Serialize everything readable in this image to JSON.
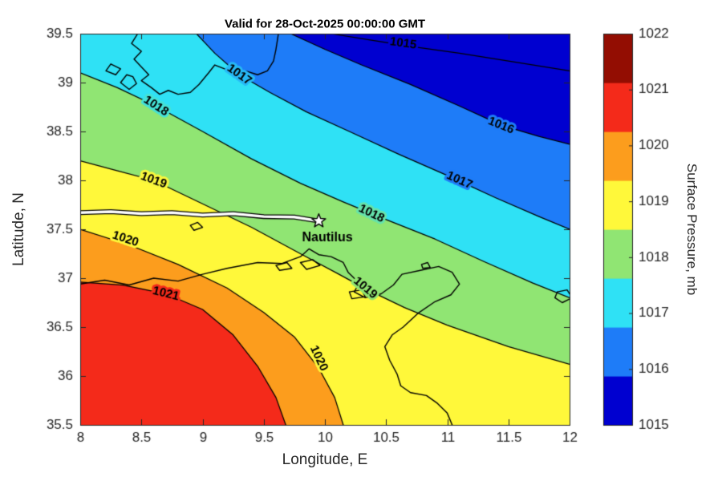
{
  "chart_data": {
    "type": "contour-map",
    "title": "Valid for 28-Oct-2025 00:00:00 GMT",
    "xlabel": "Longitude, E",
    "ylabel": "Latitude, N",
    "xlim": [
      8,
      12
    ],
    "ylim": [
      35.5,
      39.5
    ],
    "xticks": [
      8,
      8.5,
      9,
      9.5,
      10,
      10.5,
      11,
      11.5,
      12
    ],
    "yticks": [
      35.5,
      36,
      36.5,
      37,
      37.5,
      38,
      38.5,
      39,
      39.5
    ],
    "grid": false,
    "colorbar": {
      "label": "Surface Pressure, mb",
      "ticks": [
        1015,
        1016,
        1017,
        1018,
        1019,
        1020,
        1021,
        1022
      ]
    },
    "band_colors": {
      "1015": "#0000D0",
      "1016": "#1E7CF8",
      "1017": "#2FE1F5",
      "1018": "#90E573",
      "1019": "#FFF83A",
      "1020": "#FC9D1D",
      "1021": "#F42A1A",
      "1022": "#930D02"
    },
    "contours": [
      {
        "level": 1015,
        "points": [
          [
            10.05,
            39.5
          ],
          [
            10.35,
            39.44
          ],
          [
            10.7,
            39.37
          ],
          [
            11.1,
            39.3
          ],
          [
            11.5,
            39.22
          ],
          [
            12,
            39.12
          ]
        ]
      },
      {
        "level": 1016,
        "points": [
          [
            9.72,
            39.5
          ],
          [
            10.0,
            39.34
          ],
          [
            10.3,
            39.18
          ],
          [
            10.7,
            38.98
          ],
          [
            11.1,
            38.76
          ],
          [
            11.45,
            38.56
          ],
          [
            11.75,
            38.45
          ],
          [
            12,
            38.37
          ]
        ]
      },
      {
        "level": 1017,
        "points": [
          [
            8.95,
            39.5
          ],
          [
            9.1,
            39.3
          ],
          [
            9.3,
            39.08
          ],
          [
            9.55,
            38.9
          ],
          [
            9.85,
            38.7
          ],
          [
            10.2,
            38.5
          ],
          [
            10.6,
            38.27
          ],
          [
            11.0,
            38.05
          ],
          [
            11.4,
            37.82
          ],
          [
            11.75,
            37.63
          ],
          [
            12,
            37.5
          ]
        ]
      },
      {
        "level": 1018,
        "points": [
          [
            8,
            39.1
          ],
          [
            8.3,
            38.95
          ],
          [
            8.62,
            38.76
          ],
          [
            9.0,
            38.5
          ],
          [
            9.4,
            38.22
          ],
          [
            9.8,
            37.97
          ],
          [
            10.15,
            37.78
          ],
          [
            10.5,
            37.6
          ],
          [
            10.9,
            37.4
          ],
          [
            11.3,
            37.17
          ],
          [
            11.7,
            36.95
          ],
          [
            12,
            36.8
          ]
        ]
      },
      {
        "level": 1019,
        "points": [
          [
            8,
            38.2
          ],
          [
            8.3,
            38.1
          ],
          [
            8.6,
            38.0
          ],
          [
            9.0,
            37.76
          ],
          [
            9.4,
            37.52
          ],
          [
            9.8,
            37.25
          ],
          [
            10.1,
            37.05
          ],
          [
            10.35,
            36.88
          ],
          [
            10.65,
            36.7
          ],
          [
            11.0,
            36.52
          ],
          [
            11.5,
            36.3
          ],
          [
            12,
            36.12
          ]
        ]
      },
      {
        "level": 1020,
        "points": [
          [
            8,
            37.5
          ],
          [
            8.4,
            37.34
          ],
          [
            8.8,
            37.14
          ],
          [
            9.2,
            36.9
          ],
          [
            9.5,
            36.65
          ],
          [
            9.75,
            36.4
          ],
          [
            9.95,
            36.08
          ],
          [
            10.08,
            35.78
          ],
          [
            10.15,
            35.5
          ]
        ]
      },
      {
        "level": 1021,
        "points": [
          [
            8,
            36.96
          ],
          [
            8.35,
            36.93
          ],
          [
            8.7,
            36.84
          ],
          [
            9.0,
            36.68
          ],
          [
            9.25,
            36.42
          ],
          [
            9.45,
            36.1
          ],
          [
            9.6,
            35.78
          ],
          [
            9.68,
            35.5
          ]
        ]
      }
    ],
    "contour_labels": [
      {
        "text": "1018",
        "lon": 8.62,
        "lat": 38.76,
        "rot": 33
      },
      {
        "text": "1017",
        "lon": 9.3,
        "lat": 39.08,
        "rot": 35
      },
      {
        "text": "1015",
        "lon": 10.64,
        "lat": 39.4,
        "rot": 8
      },
      {
        "text": "1016",
        "lon": 11.44,
        "lat": 38.56,
        "rot": 22
      },
      {
        "text": "1017",
        "lon": 11.1,
        "lat": 38.0,
        "rot": 24
      },
      {
        "text": "1018",
        "lon": 10.38,
        "lat": 37.66,
        "rot": 26
      },
      {
        "text": "1019",
        "lon": 8.6,
        "lat": 38.0,
        "rot": 20
      },
      {
        "text": "1019",
        "lon": 10.33,
        "lat": 36.9,
        "rot": 40
      },
      {
        "text": "1020",
        "lon": 8.37,
        "lat": 37.4,
        "rot": 18
      },
      {
        "text": "1020",
        "lon": 9.95,
        "lat": 36.18,
        "rot": 65
      },
      {
        "text": "1021",
        "lon": 8.7,
        "lat": 36.84,
        "rot": 14
      }
    ],
    "coastlines": [
      {
        "name": "sardinia",
        "points": [
          [
            8.47,
            39.5
          ],
          [
            8.42,
            39.4
          ],
          [
            8.5,
            39.32
          ],
          [
            8.44,
            39.24
          ],
          [
            8.5,
            39.16
          ],
          [
            8.56,
            39.08
          ],
          [
            8.5,
            39.02
          ],
          [
            8.58,
            38.95
          ],
          [
            8.65,
            38.88
          ],
          [
            8.72,
            38.92
          ],
          [
            8.8,
            38.88
          ],
          [
            8.9,
            38.9
          ],
          [
            8.97,
            38.98
          ],
          [
            9.05,
            39.1
          ],
          [
            9.1,
            39.18
          ],
          [
            9.18,
            39.14
          ],
          [
            9.27,
            39.08
          ],
          [
            9.35,
            39.12
          ],
          [
            9.45,
            39.08
          ],
          [
            9.53,
            39.12
          ],
          [
            9.58,
            39.22
          ],
          [
            9.6,
            39.34
          ],
          [
            9.62,
            39.5
          ]
        ]
      },
      {
        "name": "sant-antioco-island",
        "points": [
          [
            8.38,
            39.08
          ],
          [
            8.33,
            39.0
          ],
          [
            8.4,
            38.93
          ],
          [
            8.46,
            38.99
          ],
          [
            8.43,
            39.06
          ],
          [
            8.38,
            39.08
          ]
        ]
      },
      {
        "name": "san-pietro-island",
        "points": [
          [
            8.25,
            39.19
          ],
          [
            8.21,
            39.12
          ],
          [
            8.29,
            39.08
          ],
          [
            8.33,
            39.14
          ],
          [
            8.25,
            39.19
          ]
        ]
      },
      {
        "name": "tunisia-coast",
        "points": [
          [
            8,
            36.94
          ],
          [
            8.2,
            36.98
          ],
          [
            8.4,
            36.93
          ],
          [
            8.6,
            37.0
          ],
          [
            8.8,
            36.97
          ],
          [
            9.0,
            37.04
          ],
          [
            9.2,
            37.1
          ],
          [
            9.45,
            37.16
          ],
          [
            9.65,
            37.15
          ],
          [
            9.8,
            37.22
          ],
          [
            9.87,
            37.3
          ],
          [
            9.95,
            37.24
          ],
          [
            10.05,
            37.22
          ],
          [
            10.15,
            37.16
          ],
          [
            10.19,
            37.06
          ],
          [
            10.28,
            36.95
          ],
          [
            10.24,
            36.86
          ],
          [
            10.33,
            36.8
          ],
          [
            10.46,
            36.84
          ],
          [
            10.56,
            36.93
          ],
          [
            10.63,
            37.04
          ],
          [
            10.78,
            37.08
          ],
          [
            10.93,
            37.12
          ],
          [
            11.04,
            37.06
          ],
          [
            11.1,
            36.94
          ],
          [
            11.03,
            36.83
          ],
          [
            10.9,
            36.76
          ],
          [
            10.76,
            36.64
          ],
          [
            10.64,
            36.5
          ],
          [
            10.55,
            36.42
          ],
          [
            10.49,
            36.3
          ],
          [
            10.53,
            36.16
          ],
          [
            10.59,
            36.02
          ],
          [
            10.62,
            35.9
          ],
          [
            10.7,
            35.83
          ],
          [
            10.83,
            35.8
          ],
          [
            10.92,
            35.72
          ],
          [
            11.0,
            35.62
          ],
          [
            11.04,
            35.5
          ]
        ]
      },
      {
        "name": "lake-ichkeul",
        "points": [
          [
            9.6,
            37.13
          ],
          [
            9.69,
            37.16
          ],
          [
            9.73,
            37.1
          ],
          [
            9.63,
            37.08
          ],
          [
            9.6,
            37.13
          ]
        ]
      },
      {
        "name": "lake-bizerte",
        "points": [
          [
            9.8,
            37.16
          ],
          [
            9.9,
            37.19
          ],
          [
            9.96,
            37.13
          ],
          [
            9.85,
            37.09
          ],
          [
            9.8,
            37.16
          ]
        ]
      },
      {
        "name": "tunis-lake",
        "points": [
          [
            10.2,
            36.86
          ],
          [
            10.3,
            36.88
          ],
          [
            10.33,
            36.81
          ],
          [
            10.22,
            36.79
          ],
          [
            10.2,
            36.86
          ]
        ]
      },
      {
        "name": "la-galite-island",
        "points": [
          [
            8.9,
            37.54
          ],
          [
            8.96,
            37.57
          ],
          [
            9.0,
            37.52
          ],
          [
            8.93,
            37.49
          ],
          [
            8.9,
            37.54
          ]
        ]
      },
      {
        "name": "zembra-island",
        "points": [
          [
            10.79,
            37.14
          ],
          [
            10.84,
            37.16
          ],
          [
            10.86,
            37.11
          ],
          [
            10.8,
            37.1
          ],
          [
            10.79,
            37.14
          ]
        ]
      },
      {
        "name": "pantelleria-island",
        "points": [
          [
            11.9,
            36.86
          ],
          [
            11.98,
            36.88
          ],
          [
            12.02,
            36.8
          ],
          [
            11.94,
            36.75
          ],
          [
            11.88,
            36.8
          ],
          [
            11.9,
            36.86
          ]
        ]
      }
    ],
    "track": {
      "points": [
        [
          8,
          37.67
        ],
        [
          8.25,
          37.68
        ],
        [
          8.5,
          37.66
        ],
        [
          8.75,
          37.67
        ],
        [
          9.0,
          37.645
        ],
        [
          9.25,
          37.66
        ],
        [
          9.5,
          37.63
        ],
        [
          9.75,
          37.625
        ],
        [
          9.95,
          37.585
        ]
      ],
      "marker": {
        "lon": 9.95,
        "lat": 37.585,
        "label": "Nautilus",
        "label_lon": 10.02,
        "label_lat": 37.41
      }
    },
    "styles": {
      "contour_line_color": "#000000",
      "coast_color": "#000000",
      "axis_color": "#262626",
      "track_outline": "#000000",
      "track_fill": "#ffffff"
    }
  }
}
